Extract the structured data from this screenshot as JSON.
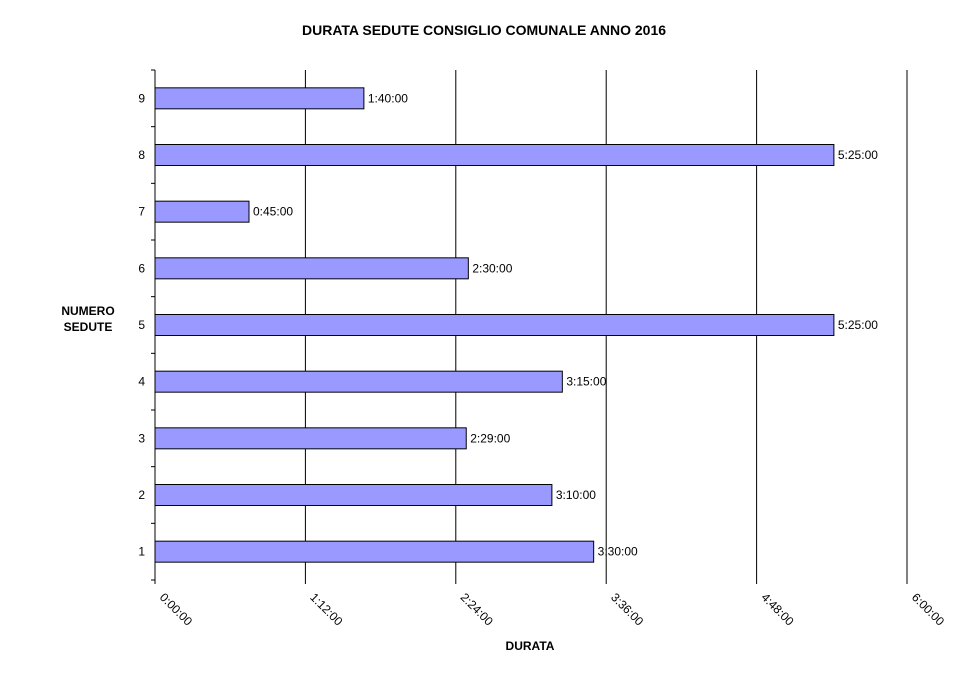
{
  "chart_data": {
    "type": "bar",
    "orientation": "horizontal",
    "title": "DURATA SEDUTE CONSIGLIO COMUNALE ANNO 2016",
    "xlabel": "DURATA",
    "ylabel": "NUMERO\nSEDUTE",
    "categories": [
      "1",
      "2",
      "3",
      "4",
      "5",
      "6",
      "7",
      "8",
      "9"
    ],
    "values_minutes": [
      210,
      190,
      149,
      195,
      325,
      150,
      45,
      325,
      100
    ],
    "data_labels": [
      "3:30:00",
      "3:10:00",
      "2:29:00",
      "3:15:00",
      "5:25:00",
      "2:30:00",
      "0:45:00",
      "5:25:00",
      "1:40:00"
    ],
    "x_ticks": [
      "0:00:00",
      "1:12:00",
      "2:24:00",
      "3:36:00",
      "4:48:00",
      "6:00:00"
    ],
    "xlim_minutes": [
      0,
      360
    ],
    "grid": "vertical",
    "bar_color": "#9999ff"
  }
}
